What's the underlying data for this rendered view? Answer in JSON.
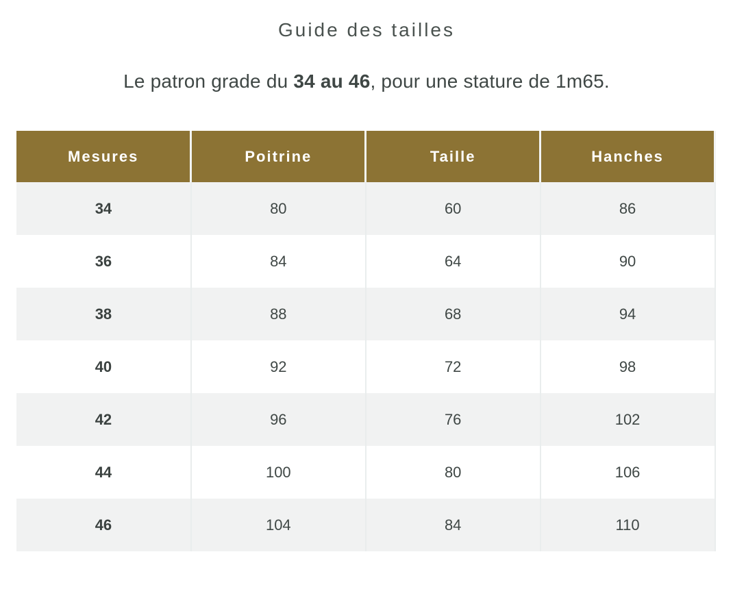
{
  "page": {
    "title": "Guide des tailles"
  },
  "subtitle": {
    "prefix": "Le patron grade du ",
    "highlight": "34 au 46",
    "suffix": ", pour une stature de 1m65."
  },
  "table": {
    "headers": [
      "Mesures",
      "Poitrine",
      "Taille",
      "Hanches"
    ],
    "rows": [
      [
        "34",
        "80",
        "60",
        "86"
      ],
      [
        "36",
        "84",
        "64",
        "90"
      ],
      [
        "38",
        "88",
        "68",
        "94"
      ],
      [
        "40",
        "92",
        "72",
        "98"
      ],
      [
        "42",
        "96",
        "76",
        "102"
      ],
      [
        "44",
        "100",
        "80",
        "106"
      ],
      [
        "46",
        "104",
        "84",
        "110"
      ]
    ]
  },
  "colors": {
    "page_bg": "#ffffff",
    "header_bg": "#8c7334",
    "header_text": "#ffffff",
    "row_alt_bg": "#f1f2f2",
    "row_bg": "#ffffff",
    "cell_border": "#e9eded",
    "title_color": "#4a524f",
    "text_color": "#3f4745"
  }
}
